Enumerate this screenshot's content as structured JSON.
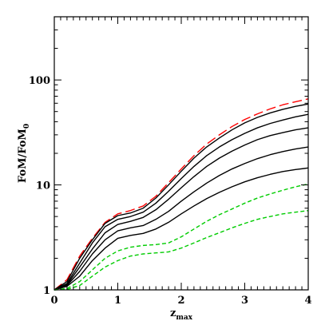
{
  "chart_data": {
    "type": "line",
    "xlabel": "z",
    "xlabel_sub": "max",
    "ylabel": "FoM/FoM",
    "ylabel_sub": "0",
    "xlim": [
      0,
      4
    ],
    "ylim": [
      1,
      400
    ],
    "yscale": "log",
    "grid": false,
    "x_ticks": [
      {
        "value": 0,
        "label": "0"
      },
      {
        "value": 1,
        "label": "1"
      },
      {
        "value": 2,
        "label": "2"
      },
      {
        "value": 3,
        "label": "3"
      },
      {
        "value": 4,
        "label": "4"
      }
    ],
    "y_ticks": [
      {
        "value": 1,
        "label": "1"
      },
      {
        "value": 10,
        "label": "10"
      },
      {
        "value": 100,
        "label": "100"
      }
    ],
    "x": [
      0,
      0.2,
      0.4,
      0.6,
      0.8,
      1.0,
      1.2,
      1.4,
      1.6,
      1.8,
      2.0,
      2.2,
      2.4,
      2.6,
      2.8,
      3.0,
      3.2,
      3.4,
      3.6,
      3.8,
      4.0
    ],
    "series": [
      {
        "color": "#ff0000",
        "dash": "long",
        "values": [
          1.0,
          1.25,
          2.1,
          3.1,
          4.4,
          5.3,
          5.7,
          6.3,
          7.8,
          10.5,
          14.2,
          19.0,
          24.5,
          30.0,
          36.0,
          42.0,
          47.5,
          53.0,
          58.0,
          62.0,
          66.0
        ]
      },
      {
        "color": "#000000",
        "dash": "solid",
        "values": [
          1.0,
          1.2,
          2.0,
          3.0,
          4.3,
          5.1,
          5.4,
          6.0,
          7.5,
          10.0,
          13.5,
          18.0,
          23.0,
          28.0,
          33.5,
          39.0,
          44.0,
          48.5,
          52.5,
          56.0,
          59.0
        ]
      },
      {
        "color": "#000000",
        "dash": "solid",
        "values": [
          1.0,
          1.15,
          1.8,
          2.8,
          4.0,
          4.7,
          5.0,
          5.5,
          6.7,
          8.7,
          11.5,
          15.0,
          19.0,
          23.0,
          27.0,
          31.0,
          35.0,
          38.5,
          41.5,
          44.5,
          47.0
        ]
      },
      {
        "color": "#000000",
        "dash": "solid",
        "values": [
          1.0,
          1.12,
          1.65,
          2.45,
          3.5,
          4.2,
          4.5,
          4.9,
          5.8,
          7.3,
          9.4,
          12.0,
          15.0,
          18.0,
          21.0,
          24.0,
          27.0,
          29.5,
          31.5,
          33.5,
          35.0
        ]
      },
      {
        "color": "#000000",
        "dash": "solid",
        "values": [
          1.0,
          1.1,
          1.5,
          2.2,
          3.0,
          3.65,
          3.9,
          4.1,
          4.7,
          5.6,
          7.0,
          8.6,
          10.4,
          12.3,
          14.2,
          16.0,
          17.8,
          19.4,
          20.8,
          22.0,
          23.0
        ]
      },
      {
        "color": "#000000",
        "dash": "solid",
        "values": [
          1.0,
          1.08,
          1.35,
          1.9,
          2.5,
          3.1,
          3.3,
          3.45,
          3.8,
          4.4,
          5.3,
          6.3,
          7.4,
          8.5,
          9.6,
          10.7,
          11.7,
          12.6,
          13.4,
          14.0,
          14.5
        ]
      },
      {
        "color": "#00cc00",
        "dash": "short",
        "values": [
          1.0,
          1.03,
          1.2,
          1.55,
          2.0,
          2.35,
          2.55,
          2.65,
          2.7,
          2.8,
          3.2,
          3.8,
          4.5,
          5.2,
          5.9,
          6.7,
          7.5,
          8.2,
          8.9,
          9.6,
          10.2
        ]
      },
      {
        "color": "#00cc00",
        "dash": "short",
        "values": [
          1.0,
          1.01,
          1.1,
          1.35,
          1.65,
          1.9,
          2.1,
          2.2,
          2.25,
          2.3,
          2.5,
          2.8,
          3.15,
          3.5,
          3.9,
          4.3,
          4.7,
          5.0,
          5.3,
          5.5,
          5.7
        ]
      }
    ]
  }
}
